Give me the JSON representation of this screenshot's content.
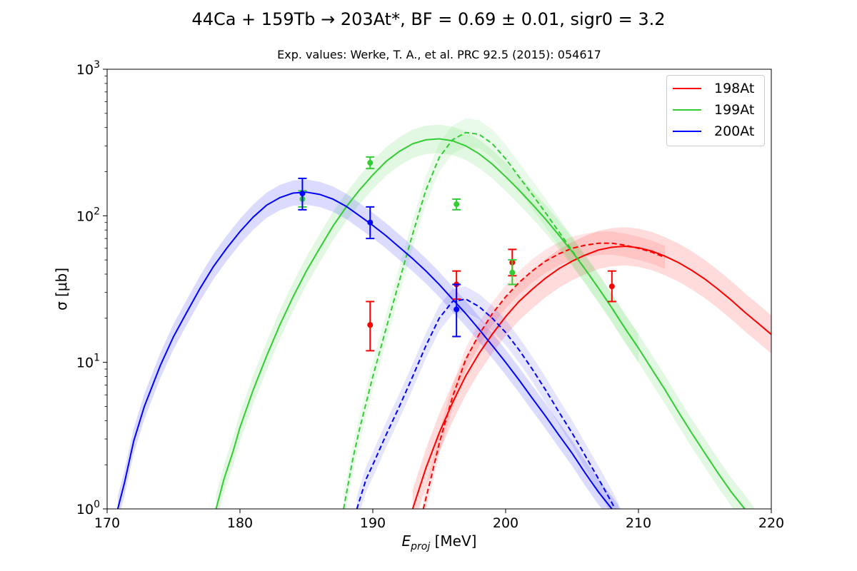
{
  "chart_data": {
    "type": "line",
    "title": "44Ca + 159Tb → 203At*, BF = 0.69 ± 0.01, sigr0 = 3.2",
    "subtitle": "Exp. values: Werke, T. A., et al. PRC 92.5 (2015): 054617",
    "xlabel_main": "E",
    "xlabel_sub": "proj",
    "xlabel_unit": " [MeV]",
    "ylabel": "σ [μb]",
    "xlim": [
      170,
      220
    ],
    "ylim": [
      1,
      1000
    ],
    "yscale": "log",
    "x_ticks": [
      "170",
      "180",
      "190",
      "200",
      "210",
      "220"
    ],
    "y_ticks": [
      {
        "value": 1,
        "base": "10",
        "exp": "0"
      },
      {
        "value": 10,
        "base": "10",
        "exp": "1"
      },
      {
        "value": 100,
        "base": "10",
        "exp": "2"
      },
      {
        "value": 1000,
        "base": "10",
        "exp": "3"
      }
    ],
    "legend_position": "top-right",
    "series": [
      {
        "name": "198At",
        "color": "#ff0000",
        "band_color": "#ff0000",
        "solid": [
          [
            193.0,
            1.0
          ],
          [
            194.0,
            1.9
          ],
          [
            195.0,
            3.3
          ],
          [
            196.0,
            5.3
          ],
          [
            197.0,
            8.1
          ],
          [
            198.0,
            11.5
          ],
          [
            199.0,
            15.6
          ],
          [
            200.0,
            20.5
          ],
          [
            201.0,
            26.0
          ],
          [
            202.0,
            31.5
          ],
          [
            203.0,
            37.5
          ],
          [
            204.0,
            43.5
          ],
          [
            205.0,
            49.0
          ],
          [
            206.0,
            54.0
          ],
          [
            207.0,
            58.5
          ],
          [
            208.0,
            61.0
          ],
          [
            209.0,
            62.0
          ],
          [
            210.0,
            60.5
          ],
          [
            211.0,
            57.5
          ],
          [
            212.0,
            53.0
          ],
          [
            213.0,
            48.0
          ],
          [
            214.0,
            42.5
          ],
          [
            215.0,
            37.0
          ],
          [
            216.0,
            31.5
          ],
          [
            217.0,
            26.5
          ],
          [
            218.0,
            22.0
          ],
          [
            219.0,
            18.5
          ],
          [
            220.0,
            15.5
          ]
        ],
        "dashed": [
          [
            193.8,
            1.0
          ],
          [
            194.5,
            1.8
          ],
          [
            195.0,
            2.8
          ],
          [
            196.0,
            5.8
          ],
          [
            197.0,
            10.5
          ],
          [
            198.0,
            15.5
          ],
          [
            199.0,
            21.5
          ],
          [
            200.0,
            28.0
          ],
          [
            201.0,
            35.0
          ],
          [
            202.0,
            42.0
          ],
          [
            203.0,
            49.0
          ],
          [
            204.0,
            55.0
          ],
          [
            205.0,
            60.0
          ],
          [
            206.0,
            63.0
          ],
          [
            207.0,
            65.0
          ],
          [
            208.0,
            65.0
          ],
          [
            209.0,
            63.0
          ],
          [
            210.0,
            60.0
          ],
          [
            211.0,
            56.5
          ],
          [
            212.0,
            52.0
          ]
        ],
        "band_factor": 1.35,
        "dashed_band_factor": 1.2,
        "points": [
          {
            "x": 189.8,
            "y": 18,
            "lo": 12,
            "hi": 26
          },
          {
            "x": 196.3,
            "y": 34,
            "lo": 27,
            "hi": 42
          },
          {
            "x": 200.5,
            "y": 48,
            "lo": 39,
            "hi": 59
          },
          {
            "x": 208.0,
            "y": 33,
            "lo": 26,
            "hi": 42
          }
        ]
      },
      {
        "name": "199At",
        "color": "#33cc33",
        "band_color": "#33cc33",
        "solid": [
          [
            178.2,
            1.0
          ],
          [
            178.8,
            1.6
          ],
          [
            179.5,
            2.5
          ],
          [
            180.0,
            3.6
          ],
          [
            181.0,
            6.5
          ],
          [
            182.0,
            11.0
          ],
          [
            183.0,
            18.0
          ],
          [
            184.0,
            28.0
          ],
          [
            185.0,
            42.0
          ],
          [
            186.0,
            60.0
          ],
          [
            187.0,
            85.0
          ],
          [
            188.0,
            115.0
          ],
          [
            189.0,
            150.0
          ],
          [
            190.0,
            190.0
          ],
          [
            191.0,
            235.0
          ],
          [
            192.0,
            275.0
          ],
          [
            193.0,
            310.0
          ],
          [
            194.0,
            330.0
          ],
          [
            195.0,
            335.0
          ],
          [
            196.0,
            325.0
          ],
          [
            197.0,
            300.0
          ],
          [
            198.0,
            265.0
          ],
          [
            199.0,
            225.0
          ],
          [
            200.0,
            185.0
          ],
          [
            201.0,
            150.0
          ],
          [
            202.0,
            120.0
          ],
          [
            203.0,
            95.0
          ],
          [
            204.0,
            74.0
          ],
          [
            205.0,
            57.0
          ],
          [
            206.0,
            43.0
          ],
          [
            207.0,
            32.0
          ],
          [
            208.0,
            23.5
          ],
          [
            209.0,
            17.0
          ],
          [
            210.0,
            12.5
          ],
          [
            211.0,
            9.0
          ],
          [
            212.0,
            6.5
          ],
          [
            213.0,
            4.6
          ],
          [
            214.0,
            3.3
          ],
          [
            215.0,
            2.4
          ],
          [
            216.0,
            1.75
          ],
          [
            217.0,
            1.3
          ],
          [
            218.0,
            1.0
          ],
          [
            219.0,
            0.75
          ],
          [
            220.0,
            0.58
          ]
        ],
        "dashed": [
          [
            187.8,
            1.0
          ],
          [
            188.5,
            2.2
          ],
          [
            189.0,
            3.5
          ],
          [
            190.0,
            8.0
          ],
          [
            191.0,
            17.0
          ],
          [
            192.0,
            36.0
          ],
          [
            193.0,
            75.0
          ],
          [
            194.0,
            150.0
          ],
          [
            195.0,
            250.0
          ],
          [
            196.0,
            330.0
          ],
          [
            197.0,
            370.0
          ],
          [
            198.0,
            360.0
          ],
          [
            199.0,
            310.0
          ],
          [
            200.0,
            245.0
          ],
          [
            201.0,
            185.0
          ],
          [
            202.0,
            140.0
          ],
          [
            203.0,
            105.0
          ],
          [
            204.0,
            78.0
          ],
          [
            205.0,
            58.0
          ],
          [
            206.0,
            43.0
          ],
          [
            207.0,
            32.0
          ],
          [
            208.0,
            23.5
          ],
          [
            209.0,
            17.0
          ],
          [
            210.0,
            12.5
          ]
        ],
        "band_factor": 1.25,
        "dashed_band_factor": 1.25,
        "points": [
          {
            "x": 184.7,
            "y": 130,
            "lo": 115,
            "hi": 148
          },
          {
            "x": 189.8,
            "y": 230,
            "lo": 210,
            "hi": 252
          },
          {
            "x": 196.3,
            "y": 120,
            "lo": 110,
            "hi": 130
          },
          {
            "x": 200.5,
            "y": 41,
            "lo": 34,
            "hi": 50
          }
        ]
      },
      {
        "name": "200At",
        "color": "#0000ff",
        "band_color": "#0000ff",
        "solid": [
          [
            170.8,
            1.0
          ],
          [
            171.3,
            1.5
          ],
          [
            172.0,
            2.9
          ],
          [
            172.8,
            5.0
          ],
          [
            174.0,
            9.5
          ],
          [
            175.0,
            15.0
          ],
          [
            176.0,
            22.0
          ],
          [
            177.0,
            32.0
          ],
          [
            178.0,
            45.0
          ],
          [
            179.0,
            60.0
          ],
          [
            180.0,
            78.0
          ],
          [
            181.0,
            98.0
          ],
          [
            182.0,
            118.0
          ],
          [
            183.0,
            133.0
          ],
          [
            184.0,
            143.0
          ],
          [
            185.0,
            145.0
          ],
          [
            186.0,
            140.0
          ],
          [
            187.0,
            130.0
          ],
          [
            188.0,
            116.0
          ],
          [
            189.0,
            100.0
          ],
          [
            190.0,
            86.0
          ],
          [
            191.0,
            73.0
          ],
          [
            192.0,
            61.0
          ],
          [
            193.0,
            51.0
          ],
          [
            194.0,
            42.0
          ],
          [
            195.0,
            34.0
          ],
          [
            196.0,
            27.0
          ],
          [
            197.0,
            21.5
          ],
          [
            198.0,
            16.8
          ],
          [
            199.0,
            13.0
          ],
          [
            200.0,
            10.0
          ],
          [
            201.0,
            7.6
          ],
          [
            202.0,
            5.7
          ],
          [
            203.0,
            4.3
          ],
          [
            204.0,
            3.2
          ],
          [
            205.0,
            2.4
          ],
          [
            206.0,
            1.75
          ],
          [
            207.0,
            1.3
          ],
          [
            208.0,
            1.0
          ],
          [
            209.0,
            0.75
          ]
        ],
        "dashed": [
          [
            188.8,
            1.0
          ],
          [
            189.5,
            1.6
          ],
          [
            190.0,
            2.0
          ],
          [
            191.0,
            3.2
          ],
          [
            192.0,
            5.0
          ],
          [
            193.0,
            8.0
          ],
          [
            194.0,
            13.0
          ],
          [
            195.0,
            20.0
          ],
          [
            196.0,
            26.0
          ],
          [
            197.0,
            27.0
          ],
          [
            198.0,
            24.0
          ],
          [
            199.0,
            20.0
          ],
          [
            200.0,
            16.0
          ],
          [
            201.0,
            12.2
          ],
          [
            202.0,
            9.0
          ],
          [
            203.0,
            6.5
          ],
          [
            204.0,
            4.6
          ],
          [
            205.0,
            3.3
          ],
          [
            206.0,
            2.3
          ],
          [
            207.0,
            1.6
          ],
          [
            208.0,
            1.1
          ],
          [
            208.5,
            0.9
          ]
        ],
        "band_factor": 1.22,
        "dashed_band_factor": 1.22,
        "points": [
          {
            "x": 184.7,
            "y": 142,
            "lo": 110,
            "hi": 180
          },
          {
            "x": 189.8,
            "y": 90,
            "lo": 70,
            "hi": 115
          },
          {
            "x": 196.3,
            "y": 23,
            "lo": 15,
            "hi": 34
          }
        ]
      }
    ]
  }
}
